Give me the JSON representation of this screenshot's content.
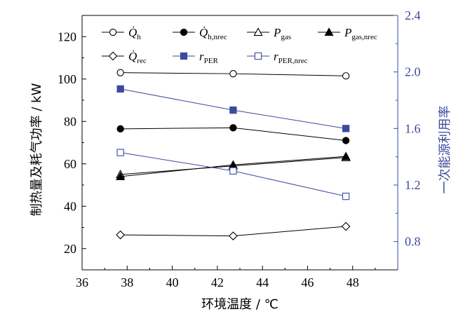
{
  "chart_data": {
    "type": "line",
    "xlabel": "环境温度 / ℃",
    "ylabel_left": "制热量及耗气功率 / kW",
    "ylabel_right": "一次能源利用率",
    "xlim": [
      36,
      50
    ],
    "ylim_left": [
      10,
      130
    ],
    "ylim_right": [
      0.6,
      2.4
    ],
    "xticks": [
      "36",
      "38",
      "40",
      "42",
      "44",
      "46",
      "48"
    ],
    "yticks_left": [
      "20",
      "40",
      "60",
      "80",
      "100",
      "120"
    ],
    "yticks_right": [
      "0.8",
      "1.2",
      "1.6",
      "2.0",
      "2.4"
    ],
    "x": [
      37.7,
      42.7,
      47.7
    ],
    "colors": {
      "black": "#000000",
      "blue": "#3a4a9e"
    },
    "series": [
      {
        "name": "Q̇h",
        "base": "Q̇",
        "sub": "h",
        "axis": "left",
        "marker": "circle-open",
        "color": "#000000",
        "values": [
          103,
          102.5,
          101.5
        ]
      },
      {
        "name": "Q̇h,nrec",
        "base": "Q̇",
        "sub": "h,nrec",
        "axis": "left",
        "marker": "circle-filled",
        "color": "#000000",
        "values": [
          76.5,
          77,
          71
        ]
      },
      {
        "name": "Pgas",
        "base": "P",
        "sub": "gas",
        "axis": "left",
        "marker": "triangle-open",
        "color": "#000000",
        "values": [
          55,
          59,
          63
        ]
      },
      {
        "name": "Pgas,nrec",
        "base": "P",
        "sub": "gas,nrec",
        "axis": "left",
        "marker": "triangle-filled",
        "color": "#000000",
        "values": [
          54,
          59.5,
          63.5
        ]
      },
      {
        "name": "Q̇rec",
        "base": "Q̇",
        "sub": "rec",
        "axis": "left",
        "marker": "diamond-open",
        "color": "#000000",
        "values": [
          26.5,
          26,
          30.5
        ]
      },
      {
        "name": "rPER",
        "base": "r",
        "sub": "PER",
        "axis": "right",
        "marker": "square-filled",
        "color": "#3a4a9e",
        "values": [
          1.88,
          1.73,
          1.6
        ]
      },
      {
        "name": "rPER,nrec",
        "base": "r",
        "sub": "PER,nrec",
        "axis": "right",
        "marker": "square-open",
        "color": "#3a4a9e",
        "values": [
          1.43,
          1.3,
          1.12
        ]
      }
    ]
  }
}
